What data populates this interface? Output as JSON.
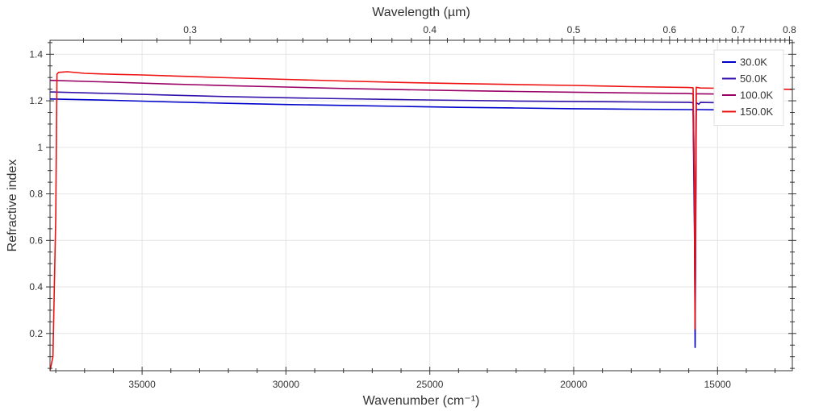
{
  "chart_data": {
    "type": "line",
    "title": "",
    "xlabel": "Wavenumber (cm⁻¹)",
    "ylabel": "Refractive index",
    "x2label": "Wavelength (µm)",
    "xlim": [
      38200,
      12400
    ],
    "ylim": [
      0.04,
      1.46
    ],
    "x_ticks": [
      35000,
      30000,
      25000,
      20000,
      15000
    ],
    "x_tick_labels": [
      "35000",
      "30000",
      "25000",
      "20000",
      "15000"
    ],
    "x2_ticks_um": [
      0.3,
      0.4,
      0.5,
      0.6,
      0.7,
      0.8
    ],
    "x2_tick_labels": [
      "0.3",
      "0.4",
      "0.5",
      "0.6",
      "0.7",
      "0.8"
    ],
    "y_ticks": [
      0.2,
      0.4,
      0.6,
      0.8,
      1.0,
      1.2,
      1.4
    ],
    "y_tick_labels": [
      "0.2",
      "0.4",
      "0.6",
      "0.8",
      "1",
      "1.2",
      "1.4"
    ],
    "grid": true,
    "legend_position": "top-right",
    "series": [
      {
        "name": "30.0K",
        "color": "#0000cc",
        "x": [
          38200,
          36000,
          34000,
          32000,
          30000,
          28000,
          26000,
          24000,
          22000,
          20000,
          18000,
          16000,
          15850,
          15800,
          15780,
          15760,
          15740,
          15700,
          15600,
          15000,
          14000,
          13500
        ],
        "y": [
          1.208,
          1.202,
          1.195,
          1.189,
          1.184,
          1.18,
          1.176,
          1.172,
          1.169,
          1.166,
          1.164,
          1.162,
          1.162,
          0.6,
          0.14,
          0.6,
          1.162,
          1.162,
          1.162,
          1.161,
          1.159,
          1.158
        ]
      },
      {
        "name": "50.0K",
        "color": "#3311aa",
        "x": [
          38200,
          36000,
          34000,
          32000,
          30000,
          28000,
          26000,
          24000,
          22000,
          20000,
          18000,
          16000,
          15850,
          15800,
          15780,
          15760,
          15740,
          15650,
          15600,
          15000,
          14000,
          13500
        ],
        "y": [
          1.238,
          1.231,
          1.224,
          1.218,
          1.213,
          1.209,
          1.205,
          1.202,
          1.199,
          1.197,
          1.195,
          1.193,
          1.192,
          0.7,
          0.21,
          0.7,
          1.192,
          1.185,
          1.193,
          1.192,
          1.19,
          1.189
        ]
      },
      {
        "name": "100.0K",
        "color": "#990066",
        "x": [
          38200,
          36000,
          34000,
          32000,
          30000,
          28000,
          26000,
          24000,
          22000,
          20000,
          18000,
          16000,
          15850,
          15800,
          15780,
          15760,
          15740,
          15600,
          15000,
          14000,
          13500
        ],
        "y": [
          1.288,
          1.28,
          1.272,
          1.265,
          1.259,
          1.253,
          1.248,
          1.244,
          1.24,
          1.237,
          1.234,
          1.231,
          1.23,
          0.8,
          0.25,
          0.8,
          1.23,
          1.23,
          1.229,
          1.227,
          1.226
        ]
      },
      {
        "name": "150.0K",
        "color": "#ee1111",
        "x": [
          38200,
          38100,
          38000,
          37960,
          37900,
          37600,
          37000,
          36000,
          35000,
          34000,
          32000,
          30000,
          28000,
          26000,
          24000,
          22000,
          20000,
          18000,
          16000,
          15850,
          15800,
          15780,
          15760,
          15740,
          15600,
          15000,
          14000,
          13000,
          12400
        ],
        "y": [
          0.04,
          0.1,
          0.7,
          1.315,
          1.322,
          1.325,
          1.318,
          1.314,
          1.311,
          1.307,
          1.299,
          1.292,
          1.285,
          1.279,
          1.274,
          1.27,
          1.266,
          1.261,
          1.257,
          1.256,
          0.8,
          0.22,
          0.8,
          1.258,
          1.255,
          1.254,
          1.252,
          1.25,
          1.249
        ]
      }
    ]
  }
}
